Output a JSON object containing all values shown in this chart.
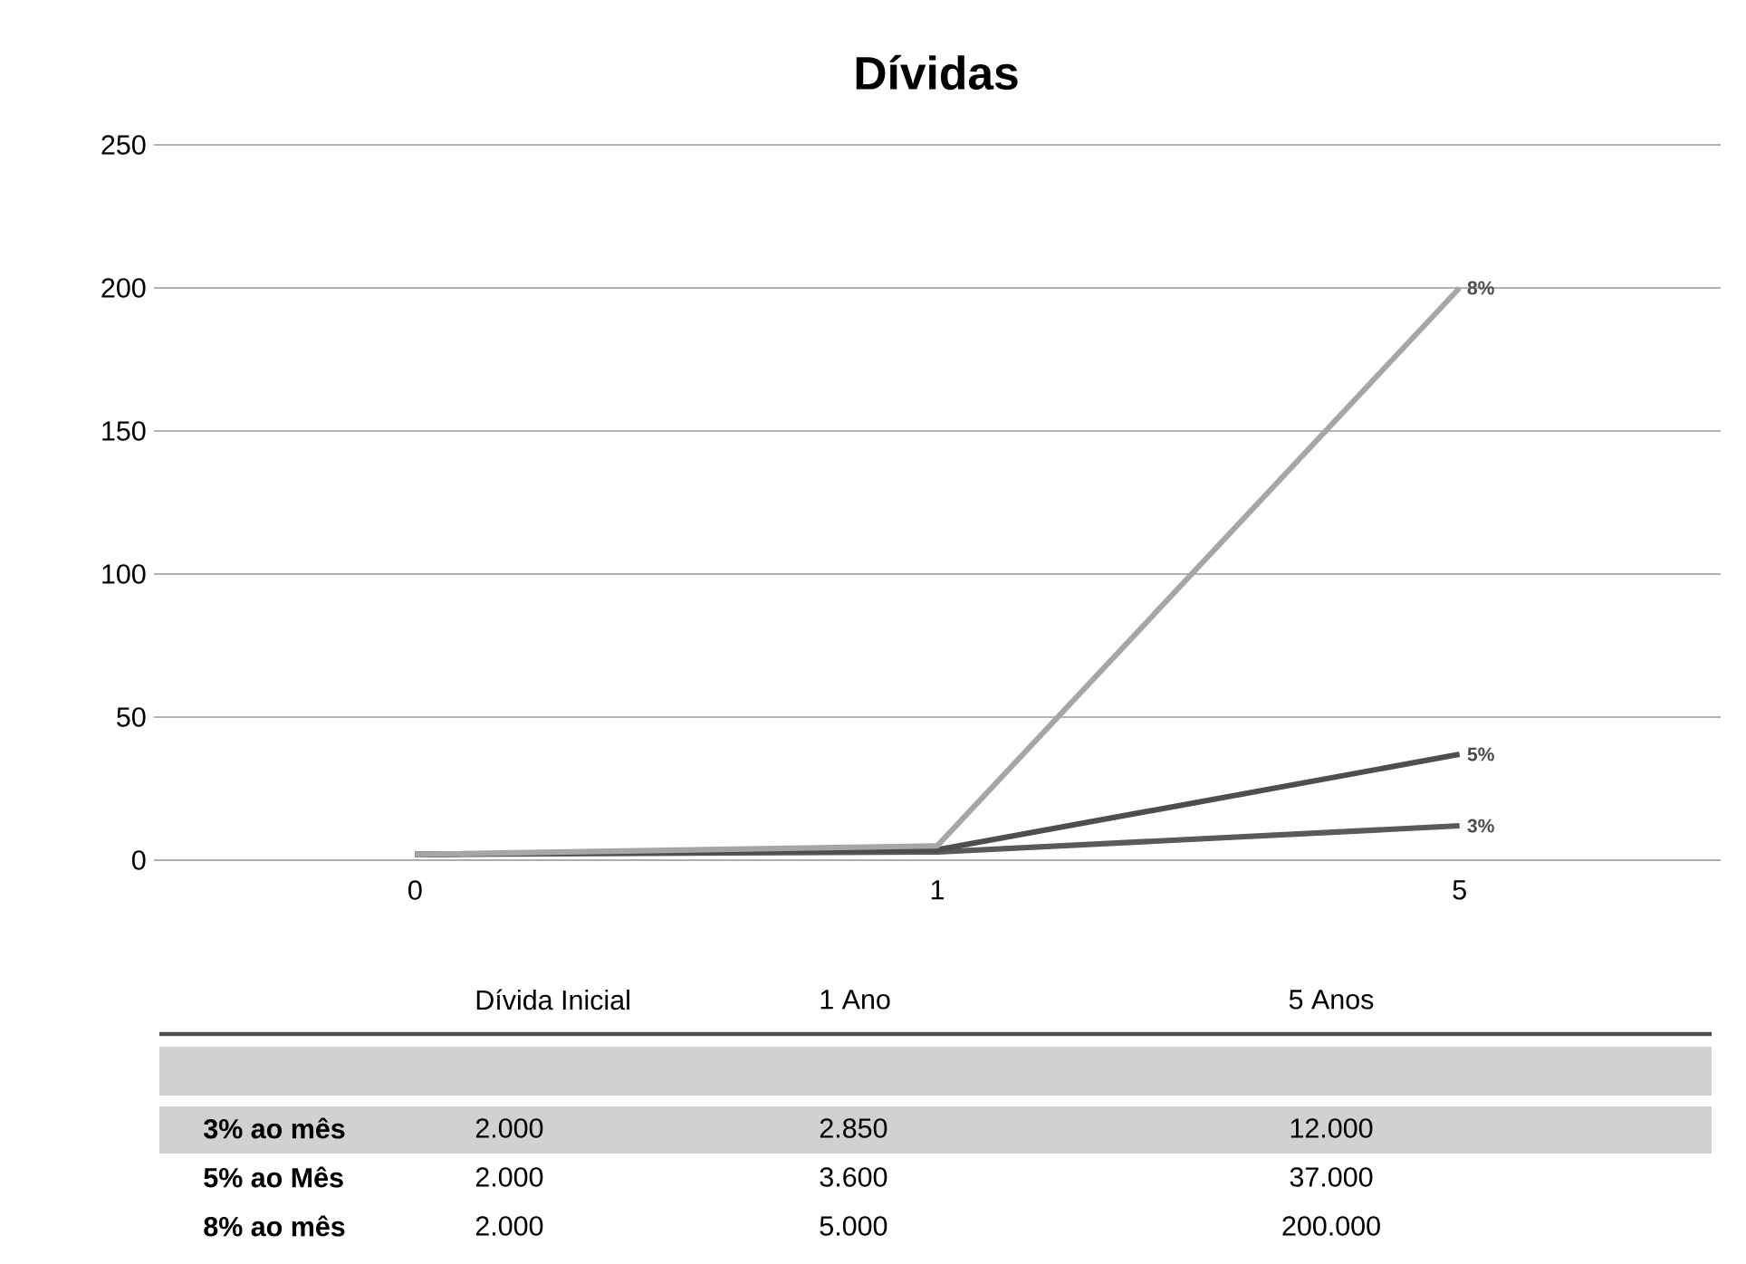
{
  "chart_data": {
    "type": "line",
    "title": "Dívidas",
    "categories": [
      "0",
      "1",
      "5"
    ],
    "ylim": [
      0,
      250
    ],
    "yticks": [
      0,
      50,
      100,
      150,
      200,
      250
    ],
    "grid": "y",
    "marker": "none",
    "line_style": "solid",
    "series": [
      {
        "name": "3%",
        "color": "#5a5a5a",
        "values": [
          2,
          2.85,
          12
        ]
      },
      {
        "name": "5%",
        "color": "#4e4e4e",
        "values": [
          2,
          3.6,
          37
        ]
      },
      {
        "name": "8%",
        "color": "#a6a6a6",
        "values": [
          2,
          5,
          200
        ]
      }
    ],
    "annotations": [
      "Dívida Inicial",
      "1 Ano",
      "5 Anos",
      "3% ao mês",
      "2.000",
      "2.850",
      "12.000",
      "5% ao Mês",
      "2.000",
      "3.600",
      "37.000",
      "8% ao mês",
      "2.000",
      "5.000",
      "200.000"
    ]
  }
}
